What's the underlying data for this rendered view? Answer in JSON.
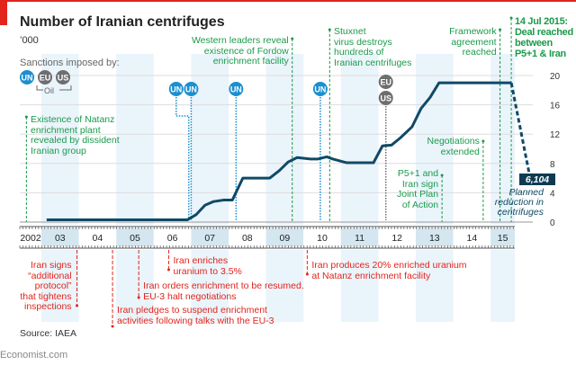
{
  "title": "Number of Iranian centrifuges",
  "unit": "’000",
  "source": "Source: IAEA",
  "brand": "Economist.com",
  "sanctions_legend": {
    "label": "Sanctions imposed by:",
    "badges": [
      "UN",
      "EU",
      "US"
    ],
    "oil_label": "Oil"
  },
  "colors": {
    "line": "#0f4a66",
    "un": "#1b8fcf",
    "eu_us": "#6d6e70",
    "green": "#1a9a4a",
    "red": "#e3241b",
    "band": "#eaf4fb",
    "accent": "#e3241b"
  },
  "chart_data": {
    "type": "line",
    "title": "Number of Iranian centrifuges",
    "ylabel": "’000",
    "ylim": [
      0,
      20
    ],
    "yticks": [
      0,
      4,
      8,
      12,
      16,
      20
    ],
    "xticks": [
      "2002",
      "03",
      "04",
      "05",
      "06",
      "07",
      "08",
      "09",
      "10",
      "11",
      "12",
      "13",
      "14",
      "15"
    ],
    "grid": true,
    "series": [
      {
        "points": [
          [
            2003.14,
            0.3
          ],
          [
            2006.9,
            0.3
          ],
          [
            2007.13,
            1.0
          ],
          [
            2007.37,
            2.3
          ],
          [
            2007.6,
            2.8
          ],
          [
            2007.86,
            3.0
          ],
          [
            2008.1,
            3.0
          ],
          [
            2008.38,
            6.0
          ],
          [
            2009.1,
            6.0
          ],
          [
            2009.35,
            7.0
          ],
          [
            2009.59,
            8.2
          ],
          [
            2009.83,
            8.8
          ],
          [
            2010.19,
            8.6
          ],
          [
            2010.38,
            8.6
          ],
          [
            2010.62,
            8.9
          ],
          [
            2010.79,
            8.6
          ],
          [
            2011.15,
            8.1
          ],
          [
            2011.87,
            8.1
          ],
          [
            2012.11,
            10.4
          ],
          [
            2012.35,
            10.5
          ],
          [
            2012.59,
            11.5
          ],
          [
            2012.9,
            13.0
          ],
          [
            2013.14,
            15.5
          ],
          [
            2013.38,
            17.0
          ],
          [
            2013.62,
            19.0
          ],
          [
            2015.55,
            19.0
          ]
        ]
      },
      {
        "style": "dashed",
        "points": [
          [
            2015.55,
            19.0
          ],
          [
            2016.05,
            6.104
          ]
        ]
      }
    ],
    "planned": {
      "value": "6,104",
      "label": [
        "Planned",
        "reduction in",
        "centrifuges"
      ]
    },
    "sanctions": [
      {
        "by": [
          "UN"
        ],
        "year": 2006.6
      },
      {
        "by": [
          "UN"
        ],
        "year": 2007.0
      },
      {
        "by": [
          "UN"
        ],
        "year": 2008.2
      },
      {
        "by": [
          "UN"
        ],
        "year": 2010.45
      },
      {
        "by": [
          "EU",
          "US"
        ],
        "year": 2012.2
      }
    ],
    "events_above": [
      {
        "year": 2002.6,
        "lines": [
          "Existence of Natanz",
          "enrichment plant",
          "revealed by dissident",
          "Iranian group"
        ]
      },
      {
        "year": 2009.7,
        "lines": [
          "Western leaders reveal",
          "existence of Fordow",
          "enrichment facility"
        ]
      },
      {
        "year": 2010.7,
        "lines": [
          "Stuxnet",
          "virus destroys",
          "hundreds of",
          "Iranian  centrifuges"
        ]
      },
      {
        "year": 2013.7,
        "lines": [
          "P5+1 and",
          "Iran sign",
          "Joint Plan",
          "of Action"
        ]
      },
      {
        "year": 2014.8,
        "lines": [
          "Negotiations",
          "extended"
        ]
      },
      {
        "year": 2015.25,
        "lines": [
          "Framework",
          "agreement",
          "reached"
        ]
      },
      {
        "year": 2015.55,
        "lines": [
          "14 Jul 2015:",
          "Deal reached",
          "between",
          "P5+1 & Iran"
        ]
      }
    ],
    "events_below": [
      {
        "year": 2003.95,
        "lines": [
          "Iran signs",
          "“additional",
          "protocol”",
          "that tightens",
          "inspections"
        ]
      },
      {
        "year": 2004.9,
        "lines": [
          "Iran pledges to suspend enrichment",
          "activities following talks with the EU-3"
        ]
      },
      {
        "year": 2005.6,
        "lines": [
          "Iran orders enrichment to be resumed.",
          "EU-3 halt negotiations"
        ]
      },
      {
        "year": 2006.4,
        "lines": [
          "Iran enriches",
          "uranium to 3.5%"
        ]
      },
      {
        "year": 2010.1,
        "lines": [
          "Iran produces 20% enriched uranium",
          "at Natanz enrichment facility"
        ]
      }
    ]
  }
}
